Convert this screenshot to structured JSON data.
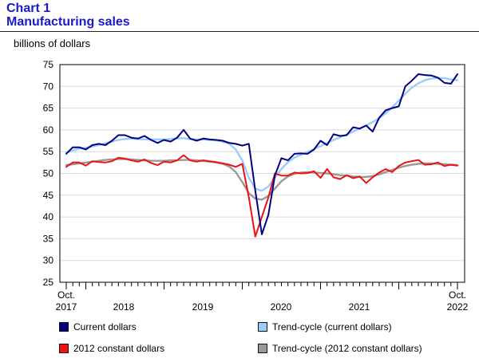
{
  "header": {
    "title_line1": "Chart 1",
    "title_line2": "Manufacturing sales"
  },
  "colors": {
    "title": "#1a1acc",
    "current": "#000080",
    "trend_current": "#99ccff",
    "constant": "#ee1111",
    "trend_constant": "#999999"
  },
  "chart_data": {
    "type": "line",
    "title": "Manufacturing sales",
    "ylabel": "billions of dollars",
    "ylim": [
      25,
      75
    ],
    "yticks": [
      "25",
      "30",
      "35",
      "40",
      "45",
      "50",
      "55",
      "60",
      "65",
      "70",
      "75"
    ],
    "x_start": "Oct. 2017",
    "x_end": "Oct. 2022",
    "x_tick_labels": [
      {
        "line1": "Oct.",
        "line2": "2017"
      },
      {
        "line1": "",
        "line2": "2018"
      },
      {
        "line1": "",
        "line2": "2019"
      },
      {
        "line1": "",
        "line2": "2020"
      },
      {
        "line1": "",
        "line2": "2021"
      },
      {
        "line1": "Oct.",
        "line2": "2022"
      }
    ],
    "grid": true,
    "series": [
      {
        "name": "Current dollars",
        "values": [
          54.5,
          56.0,
          56.0,
          55.5,
          56.5,
          56.8,
          56.5,
          57.5,
          58.8,
          58.8,
          58.2,
          58.0,
          58.6,
          57.7,
          57.0,
          57.7,
          57.3,
          58.2,
          60.0,
          58.0,
          57.5,
          58.0,
          57.8,
          57.7,
          57.5,
          57.0,
          56.8,
          56.4,
          56.8,
          46.0,
          36.0,
          40.5,
          49.5,
          53.5,
          53.0,
          54.5,
          54.6,
          54.5,
          55.5,
          57.5,
          56.5,
          59.0,
          58.6,
          58.8,
          60.6,
          60.3,
          61.0,
          59.6,
          62.8,
          64.5,
          65.0,
          65.4,
          70.0,
          71.3,
          72.8,
          72.6,
          72.5,
          72.0,
          70.8,
          70.6,
          72.8
        ]
      },
      {
        "name": "Trend-cycle (current dollars)",
        "values": [
          54.8,
          55.3,
          55.7,
          55.9,
          56.2,
          56.5,
          56.9,
          57.3,
          57.7,
          57.9,
          58.0,
          57.9,
          57.8,
          57.8,
          57.8,
          57.8,
          57.9,
          58.1,
          58.1,
          57.9,
          57.8,
          57.8,
          57.7,
          57.6,
          57.3,
          56.8,
          55.5,
          53.0,
          49.0,
          46.5,
          46.0,
          47.0,
          49.0,
          51.0,
          52.6,
          53.6,
          54.3,
          54.9,
          55.6,
          56.3,
          57.0,
          57.7,
          58.3,
          58.9,
          59.6,
          60.3,
          61.0,
          61.8,
          62.7,
          63.8,
          65.2,
          66.7,
          68.3,
          69.7,
          70.7,
          71.4,
          71.8,
          71.9,
          71.9,
          71.6,
          71.4
        ]
      },
      {
        "name": "2012 constant dollars",
        "values": [
          51.5,
          52.5,
          52.5,
          51.8,
          52.8,
          52.6,
          52.5,
          52.8,
          53.6,
          53.4,
          53.0,
          52.7,
          53.2,
          52.4,
          51.9,
          52.7,
          52.5,
          53.0,
          54.2,
          53.0,
          52.7,
          53.0,
          52.8,
          52.6,
          52.3,
          52.0,
          51.5,
          52.2,
          44.5,
          35.5,
          40.0,
          44.5,
          50.0,
          49.5,
          49.5,
          50.2,
          50.0,
          50.1,
          50.5,
          49.0,
          51.0,
          49.1,
          48.7,
          49.6,
          48.9,
          49.3,
          47.8,
          49.1,
          50.2,
          51.0,
          50.3,
          51.7,
          52.5,
          52.8,
          53.1,
          52.0,
          52.1,
          52.5,
          51.7,
          52.0,
          51.8
        ]
      },
      {
        "name": "Trend-cycle (2012 constant dollars)",
        "values": [
          51.9,
          52.1,
          52.3,
          52.5,
          52.7,
          52.9,
          53.1,
          53.2,
          53.3,
          53.3,
          53.2,
          53.1,
          53.0,
          52.9,
          52.9,
          52.9,
          53.0,
          53.0,
          53.1,
          53.1,
          53.0,
          52.9,
          52.7,
          52.5,
          52.2,
          51.6,
          50.3,
          48.0,
          45.5,
          44.2,
          44.0,
          44.8,
          46.5,
          48.2,
          49.3,
          49.9,
          50.2,
          50.3,
          50.2,
          50.1,
          50.0,
          49.8,
          49.6,
          49.5,
          49.3,
          49.2,
          49.2,
          49.4,
          49.8,
          50.3,
          50.8,
          51.3,
          51.7,
          52.0,
          52.2,
          52.3,
          52.3,
          52.2,
          52.1,
          52.0,
          51.9
        ]
      }
    ]
  },
  "legend": {
    "current": "Current dollars",
    "trend_current": "Trend-cycle (current dollars)",
    "constant": "2012 constant dollars",
    "trend_constant": "Trend-cycle (2012 constant dollars)"
  }
}
